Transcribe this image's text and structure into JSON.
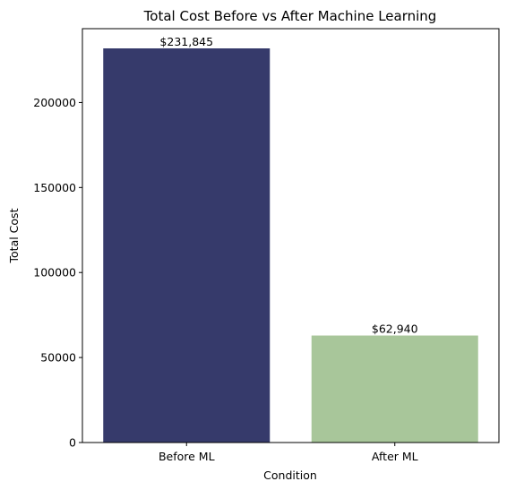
{
  "chart_data": {
    "type": "bar",
    "title": "Total Cost Before vs After Machine Learning",
    "xlabel": "Condition",
    "ylabel": "Total Cost",
    "categories": [
      "Before ML",
      "After ML"
    ],
    "values": [
      231845,
      62940
    ],
    "data_labels": [
      "$231,845",
      "$62,940"
    ],
    "colors": [
      "#363a6b",
      "#a8c69a"
    ],
    "yticks": [
      0,
      50000,
      100000,
      150000,
      200000
    ],
    "ytick_labels": [
      "0",
      "50000",
      "100000",
      "150000",
      "200000"
    ],
    "ylim": [
      0,
      243437
    ],
    "grid": false,
    "legend": "none"
  }
}
